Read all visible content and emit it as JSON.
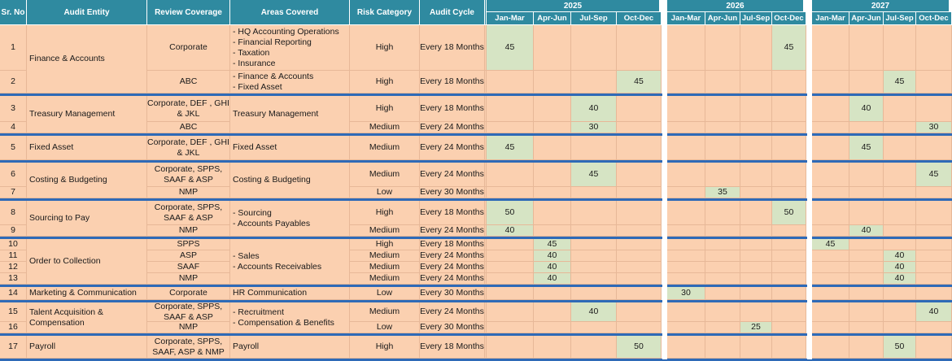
{
  "headers": {
    "sr_no": "Sr. No",
    "entity": "Audit Entity",
    "coverage": "Review Coverage",
    "areas": "Areas Covered",
    "risk": "Risk Category",
    "cycle": "Audit Cycle"
  },
  "years": [
    "2025",
    "2026",
    "2027"
  ],
  "quarters": [
    "Jan-Mar",
    "Apr-Jun",
    "Jul-Sep",
    "Oct-Dec"
  ],
  "groups": [
    {
      "entity": "Finance & Accounts",
      "areas": [],
      "rows": [
        {
          "sr": "1",
          "coverage": "Corporate",
          "areas": [
            "- HQ Accounting Operations",
            "- Financial Reporting",
            "- Taxation",
            "- Insurance"
          ],
          "risk": "High",
          "cycle": "Every 18 Months",
          "schedule": [
            {
              "q": 0,
              "v": "45"
            },
            {
              "q": 7,
              "v": "45"
            }
          ]
        },
        {
          "sr": "2",
          "coverage": "ABC",
          "areas": [
            "- Finance & Accounts",
            "- Fixed Asset"
          ],
          "risk": "High",
          "cycle": "Every 18 Months",
          "schedule": [
            {
              "q": 3,
              "v": "45"
            },
            {
              "q": 10,
              "v": "45"
            }
          ]
        }
      ]
    },
    {
      "entity": "Treasury Management",
      "areas": [
        "Treasury Management"
      ],
      "rows": [
        {
          "sr": "3",
          "coverage": "Corporate, DEF , GHI & JKL",
          "areas": [],
          "risk": "High",
          "cycle": "Every 18 Months",
          "schedule": [
            {
              "q": 2,
              "v": "40"
            },
            {
              "q": 9,
              "v": "40"
            }
          ]
        },
        {
          "sr": "4",
          "coverage": "ABC",
          "areas": [],
          "risk": "Medium",
          "cycle": "Every 24 Months",
          "schedule": [
            {
              "q": 2,
              "v": "30"
            },
            {
              "q": 11,
              "v": "30"
            }
          ]
        }
      ]
    },
    {
      "entity": "Fixed Asset",
      "areas": [
        "Fixed Asset"
      ],
      "rows": [
        {
          "sr": "5",
          "coverage": "Corporate, DEF , GHI & JKL",
          "areas": [],
          "risk": "Medium",
          "cycle": "Every 24 Months",
          "schedule": [
            {
              "q": 0,
              "v": "45"
            },
            {
              "q": 9,
              "v": "45"
            }
          ]
        }
      ]
    },
    {
      "entity": "Costing & Budgeting",
      "areas": [
        "Costing & Budgeting"
      ],
      "rows": [
        {
          "sr": "6",
          "coverage": "Corporate, SPPS, SAAF & ASP",
          "areas": [],
          "risk": "Medium",
          "cycle": "Every 24 Months",
          "schedule": [
            {
              "q": 2,
              "v": "45"
            },
            {
              "q": 11,
              "v": "45"
            }
          ]
        },
        {
          "sr": "7",
          "coverage": "NMP",
          "areas": [],
          "risk": "Low",
          "cycle": "Every 30 Months",
          "schedule": [
            {
              "q": 5,
              "v": "35"
            }
          ]
        }
      ]
    },
    {
      "entity": "Sourcing to Pay",
      "areas": [
        "- Sourcing",
        "- Accounts Payables"
      ],
      "rows": [
        {
          "sr": "8",
          "coverage": "Corporate, SPPS, SAAF & ASP",
          "areas": [],
          "risk": "High",
          "cycle": "Every 18 Months",
          "schedule": [
            {
              "q": 0,
              "v": "50"
            },
            {
              "q": 7,
              "v": "50"
            }
          ]
        },
        {
          "sr": "9",
          "coverage": "NMP",
          "areas": [],
          "risk": "Medium",
          "cycle": "Every 24 Months",
          "schedule": [
            {
              "q": 0,
              "v": "40"
            },
            {
              "q": 9,
              "v": "40"
            }
          ]
        }
      ]
    },
    {
      "entity": "Order to Collection",
      "areas": [
        "- Sales",
        "- Accounts Receivables"
      ],
      "rows": [
        {
          "sr": "10",
          "coverage": "SPPS",
          "areas": [],
          "risk": "High",
          "cycle": "Every 18 Months",
          "schedule": [
            {
              "q": 1,
              "v": "45"
            },
            {
              "q": 8,
              "v": "45"
            }
          ]
        },
        {
          "sr": "11",
          "coverage": "ASP",
          "areas": [],
          "risk": "Medium",
          "cycle": "Every 24 Months",
          "schedule": [
            {
              "q": 1,
              "v": "40"
            },
            {
              "q": 10,
              "v": "40"
            }
          ]
        },
        {
          "sr": "12",
          "coverage": "SAAF",
          "areas": [],
          "risk": "Medium",
          "cycle": "Every 24 Months",
          "schedule": [
            {
              "q": 1,
              "v": "40"
            },
            {
              "q": 10,
              "v": "40"
            }
          ]
        },
        {
          "sr": "13",
          "coverage": "NMP",
          "areas": [],
          "risk": "Medium",
          "cycle": "Every 24 Months",
          "schedule": [
            {
              "q": 1,
              "v": "40"
            },
            {
              "q": 10,
              "v": "40"
            }
          ]
        }
      ]
    },
    {
      "entity": "Marketing & Communication",
      "areas": [
        "HR Communication"
      ],
      "rows": [
        {
          "sr": "14",
          "coverage": "Corporate",
          "areas": [],
          "risk": "Low",
          "cycle": "Every 30 Months",
          "schedule": [
            {
              "q": 4,
              "v": "30"
            }
          ]
        }
      ]
    },
    {
      "entity": "Talent Acquisition & Compensation",
      "areas": [
        "- Recruitment",
        "- Compensation & Benefits"
      ],
      "rows": [
        {
          "sr": "15",
          "coverage": "Corporate, SPPS, SAAF & ASP",
          "areas": [],
          "risk": "Medium",
          "cycle": "Every 24 Months",
          "schedule": [
            {
              "q": 2,
              "v": "40"
            },
            {
              "q": 11,
              "v": "40"
            }
          ]
        },
        {
          "sr": "16",
          "coverage": "NMP",
          "areas": [],
          "risk": "Low",
          "cycle": "Every 30 Months",
          "schedule": [
            {
              "q": 6,
              "v": "25"
            }
          ]
        }
      ]
    },
    {
      "entity": "Payroll",
      "areas": [
        "Payroll"
      ],
      "rows": [
        {
          "sr": "17",
          "coverage": "Corporate, SPPS, SAAF, ASP & NMP",
          "areas": [],
          "risk": "High",
          "cycle": "Every 18 Months",
          "schedule": [
            {
              "q": 3,
              "v": "50"
            },
            {
              "q": 10,
              "v": "50"
            }
          ]
        }
      ]
    }
  ],
  "colors": {
    "header": "#2f8aa0",
    "cell": "#fbd0b0",
    "scheduled": "#d6e4c4",
    "group_separator": "#2e6ab7"
  }
}
